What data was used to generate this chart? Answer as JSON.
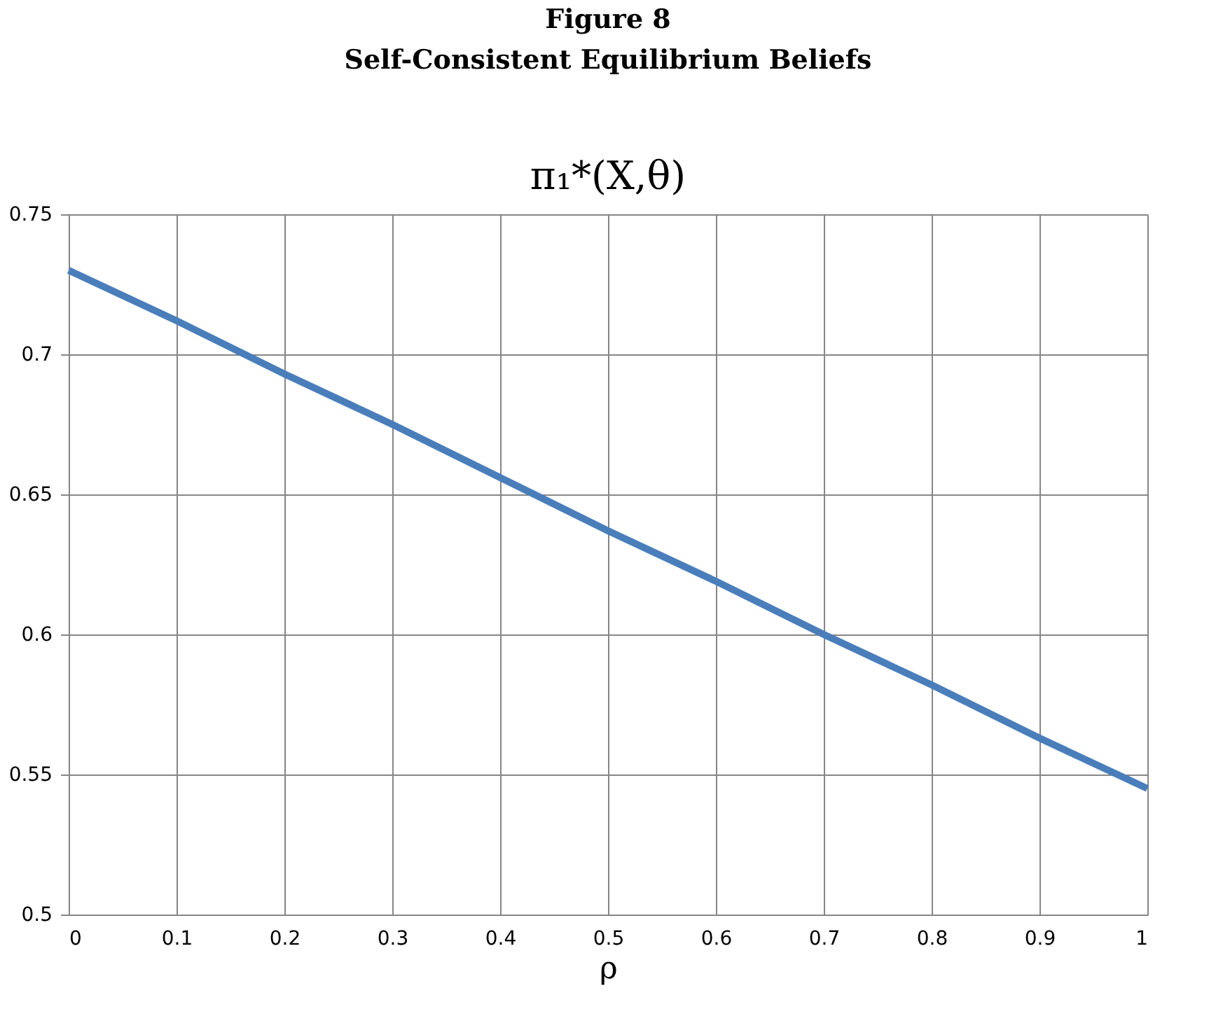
{
  "chart_data": {
    "type": "line",
    "title": "Figure 8",
    "subtitle": "Self-Consistent Equilibrium Beliefs",
    "annotations": [
      "π₁*(X,θ)"
    ],
    "xlabel": "ρ",
    "x": [
      0,
      0.1,
      0.2,
      0.3,
      0.4,
      0.5,
      0.6,
      0.7,
      0.8,
      0.9,
      1
    ],
    "series": [
      {
        "color": "#4a7ebb",
        "values": [
          0.73,
          0.712,
          0.693,
          0.675,
          0.656,
          0.637,
          0.619,
          0.6,
          0.582,
          0.563,
          0.545
        ]
      }
    ],
    "xlim": [
      0,
      1
    ],
    "xticks": [
      0,
      0.1,
      0.2,
      0.3,
      0.4,
      0.5,
      0.6,
      0.7,
      0.8,
      0.9,
      1
    ],
    "ylim": [
      0.5,
      0.75
    ],
    "yticks": [
      0.5,
      0.55,
      0.6,
      0.65,
      0.7,
      0.75
    ],
    "grid": true,
    "legend": false,
    "marker": "none",
    "line_style": "solid"
  }
}
